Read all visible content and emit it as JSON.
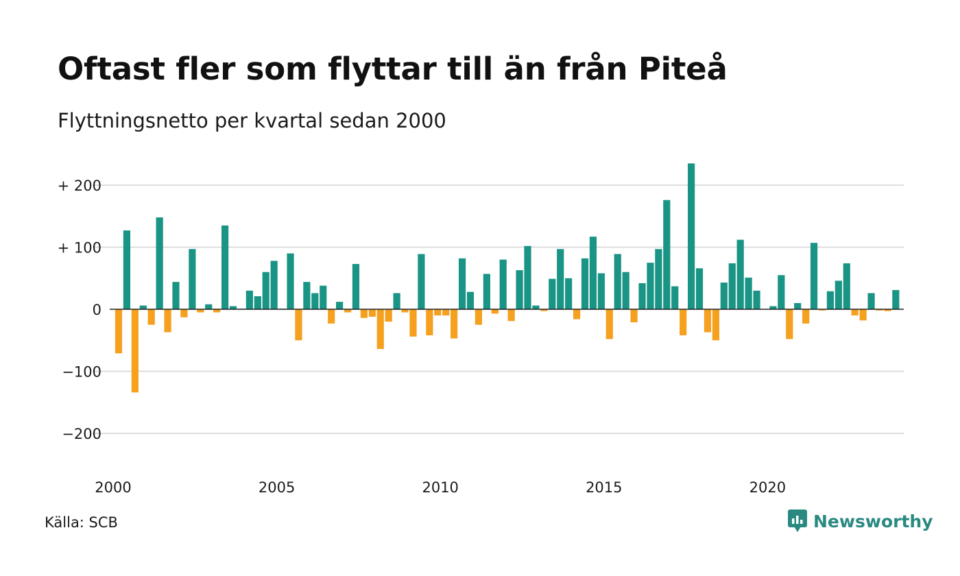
{
  "header": {
    "title": "Oftast fler som flyttar till än från Piteå",
    "subtitle": "Flyttningsnetto per kvartal sedan 2000"
  },
  "footer": {
    "source": "Källa: SCB",
    "brand": "Newsworthy",
    "brand_icon": "newsworthy-logo-icon"
  },
  "colors": {
    "positive": "#1a9485",
    "negative": "#f5a01e",
    "grid": "#dddddd",
    "brand": "#2a8a82"
  },
  "chart_data": {
    "type": "bar",
    "title": "Oftast fler som flyttar till än från Piteå",
    "subtitle": "Flyttningsnetto per kvartal sedan 2000",
    "xlabel": "",
    "ylabel": "",
    "x_start": "2000 Q1",
    "x_ticks": [
      2000,
      2005,
      2010,
      2015,
      2020
    ],
    "y_ticks": [
      {
        "value": 200,
        "label": "+ 200"
      },
      {
        "value": 100,
        "label": "+ 100"
      },
      {
        "value": 0,
        "label": "0"
      },
      {
        "value": -100,
        "label": "−100"
      },
      {
        "value": -200,
        "label": "−200"
      }
    ],
    "ylim": [
      -250,
      250
    ],
    "grid": true,
    "legend": "none",
    "values": [
      -71,
      127,
      -134,
      6,
      -25,
      148,
      -37,
      44,
      -13,
      97,
      -5,
      8,
      -5,
      135,
      5,
      1,
      30,
      21,
      60,
      78,
      1,
      90,
      -50,
      44,
      26,
      38,
      -23,
      12,
      -5,
      73,
      -14,
      -12,
      -64,
      -20,
      26,
      -5,
      -44,
      89,
      -42,
      -10,
      -10,
      -47,
      82,
      28,
      -25,
      57,
      -7,
      80,
      -19,
      63,
      102,
      6,
      -3,
      49,
      97,
      50,
      -16,
      82,
      117,
      58,
      -48,
      89,
      60,
      -21,
      42,
      75,
      97,
      176,
      37,
      -42,
      235,
      66,
      -37,
      -50,
      43,
      74,
      112,
      51,
      30,
      0,
      5,
      55,
      -48,
      10,
      -23,
      107,
      -2,
      29,
      46,
      74,
      -10,
      -18,
      26,
      -2,
      -3,
      31
    ]
  }
}
